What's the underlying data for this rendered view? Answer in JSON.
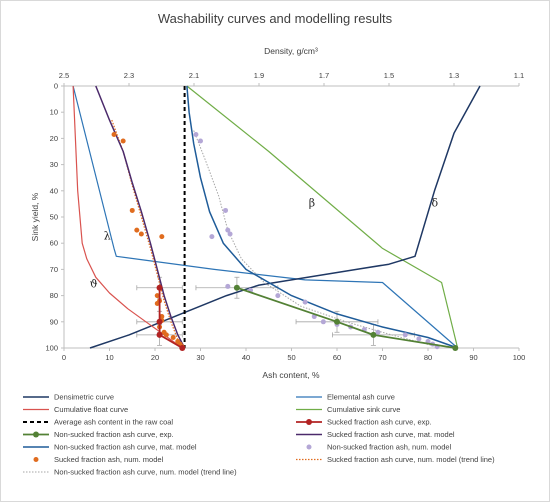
{
  "chart_data": {
    "type": "line",
    "title": "Washability curves and modelling results",
    "xlabel": "Ash content, %",
    "x2label": "Density, g/cm³",
    "ylabel": "Sink yield, %",
    "xlim": [
      0,
      100
    ],
    "x2lim": [
      2.5,
      1.1
    ],
    "ylim": [
      0,
      100
    ],
    "y_inverted": true,
    "grid": false,
    "legend_position": "bottom",
    "x_ticks": [
      "0",
      "10",
      "20",
      "30",
      "40",
      "50",
      "60",
      "70",
      "80",
      "90",
      "100"
    ],
    "x2_ticks": [
      "2.5",
      "2.3",
      "2.1",
      "1.9",
      "1.7",
      "1.5",
      "1.3",
      "1.1"
    ],
    "y_ticks": [
      "0",
      "10",
      "20",
      "30",
      "40",
      "50",
      "60",
      "70",
      "80",
      "90",
      "100"
    ],
    "annotations": [
      {
        "text": "β",
        "x": 54.5,
        "y": 46
      },
      {
        "text": "δ",
        "x": 81.5,
        "y": 46
      },
      {
        "text": "λ",
        "x": 9.5,
        "y": 58.5
      },
      {
        "text": "ϑ",
        "x": 6.5,
        "y": 77
      }
    ],
    "series": [
      {
        "name": "Densimetric curve",
        "kind": "line",
        "color": "#1f3864",
        "width": 1.5,
        "axis": "density",
        "x": [
          2.42,
          2.3,
          2.2,
          2.1,
          2.0,
          1.9,
          1.8,
          1.7,
          1.6,
          1.5,
          1.42,
          1.36,
          1.3,
          1.22
        ],
        "y": [
          100,
          95,
          90,
          85,
          80,
          76,
          74,
          72,
          70,
          68,
          65,
          40,
          18,
          0
        ]
      },
      {
        "name": "Elemental ash curve",
        "kind": "line",
        "color": "#2e75b6",
        "width": 1.2,
        "x": [
          2,
          11,
          11.5,
          33,
          53,
          70,
          86.5
        ],
        "y": [
          0,
          62,
          65,
          70,
          74,
          75,
          100
        ]
      },
      {
        "name": "Cumulative float curve",
        "kind": "line",
        "color": "#d9534f",
        "width": 1.2,
        "x": [
          2,
          2.5,
          3,
          4,
          5,
          7,
          10,
          14,
          18,
          22,
          26
        ],
        "y": [
          0,
          20,
          40,
          60,
          66,
          73,
          79,
          85,
          90,
          95,
          100
        ]
      },
      {
        "name": "Cumulative sink curve",
        "kind": "line",
        "color": "#70ad47",
        "width": 1.2,
        "x": [
          27,
          45,
          70,
          80,
          83,
          86.5
        ],
        "y": [
          0,
          25,
          62,
          72,
          75,
          100
        ]
      },
      {
        "name": "Average ash content in the raw coal",
        "kind": "line",
        "color": "#000000",
        "width": 2,
        "dash": "4,3",
        "x": [
          26.5,
          26.5
        ],
        "y": [
          0,
          100
        ]
      },
      {
        "name": "Sucked fraction ash curve, exp.",
        "kind": "line-marker",
        "color": "#b22222",
        "width": 1.8,
        "x": [
          21,
          21,
          21,
          26
        ],
        "y": [
          77,
          90,
          95,
          100
        ]
      },
      {
        "name": "Non-sucked fraction ash curve, exp.",
        "kind": "line-marker",
        "color": "#538135",
        "width": 1.8,
        "x": [
          38,
          60,
          68,
          86
        ],
        "y": [
          77,
          90,
          95,
          100
        ]
      },
      {
        "name": "Sucked fraction ash curve, mat. model",
        "kind": "line",
        "color": "#4b2a6b",
        "width": 1.5,
        "x": [
          7,
          10,
          13,
          15,
          17,
          19,
          20.5,
          22,
          23.5,
          25,
          26.5
        ],
        "y": [
          0,
          13,
          25,
          37,
          48,
          60,
          70,
          80,
          88,
          95,
          100
        ]
      },
      {
        "name": "Non-sucked fraction ash curve, mat. model",
        "kind": "line",
        "color": "#1f5c99",
        "width": 1.5,
        "x": [
          27,
          27.5,
          28.5,
          30,
          32,
          35,
          40,
          50,
          60,
          70,
          80,
          86.5
        ],
        "y": [
          0,
          10,
          22,
          35,
          48,
          60,
          70,
          80,
          87,
          92,
          96,
          100
        ]
      },
      {
        "name": "Non-sucked fraction ash, num. model",
        "kind": "scatter",
        "color": "#b4a7d6",
        "x": [
          29,
          30,
          35.5,
          36,
          36.5,
          32.5,
          36,
          41,
          47,
          53,
          55,
          57,
          60,
          63,
          66,
          69,
          75,
          78,
          80,
          81,
          82
        ],
        "y": [
          18.5,
          21,
          47.5,
          55,
          56.5,
          57.5,
          76.5,
          78,
          80,
          82.5,
          88,
          90,
          91,
          92,
          93,
          94,
          95,
          96.5,
          97.5,
          98.5,
          99.5
        ]
      },
      {
        "name": "Sucked fraction ash, num. model",
        "kind": "scatter",
        "color": "#e06c1f",
        "x": [
          11,
          13,
          15,
          16,
          17,
          20.5,
          21,
          20.5,
          21.5,
          21.5,
          21.5,
          21,
          22,
          22.5,
          24,
          25,
          25.5,
          26
        ],
        "y": [
          18.5,
          21,
          47.5,
          55,
          56.5,
          80,
          82,
          83,
          57.5,
          88,
          89.5,
          92,
          94,
          95,
          96,
          97.5,
          98.5,
          99.5
        ]
      },
      {
        "name": "Sucked fraction ash curve, num. model (trend line)",
        "kind": "dotted",
        "color": "#e06c1f",
        "width": 1.2,
        "x": [
          10.5,
          13,
          15,
          17,
          19,
          20.5,
          22,
          23.5,
          25.5
        ],
        "y": [
          13,
          25,
          38,
          50,
          62,
          72,
          82,
          90,
          99
        ]
      },
      {
        "name": "Non-sucked fraction ash curve, num. model (trend line)",
        "kind": "dotted",
        "color": "#a6a6a6",
        "width": 1,
        "x": [
          28.5,
          31,
          34,
          36,
          39,
          44,
          52,
          62,
          72,
          82
        ],
        "y": [
          17,
          28,
          42,
          55,
          66,
          75,
          84,
          90,
          95,
          99.5
        ]
      }
    ],
    "error_bars": [
      {
        "x": 21,
        "y": 77,
        "xerr": 5,
        "yerr": 4
      },
      {
        "x": 21,
        "y": 90,
        "xerr": 5,
        "yerr": 4
      },
      {
        "x": 21,
        "y": 95,
        "xerr": 5,
        "yerr": 4
      },
      {
        "x": 38,
        "y": 77,
        "xerr": 9,
        "yerr": 4
      },
      {
        "x": 60,
        "y": 90,
        "xerr": 9,
        "yerr": 4
      },
      {
        "x": 68,
        "y": 95,
        "xerr": 9,
        "yerr": 4
      }
    ]
  }
}
